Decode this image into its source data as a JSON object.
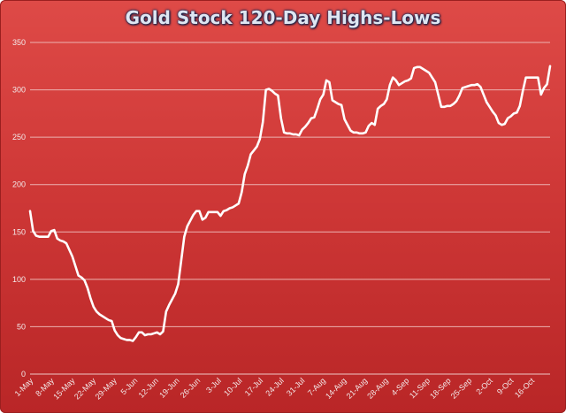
{
  "chart_data": {
    "type": "line",
    "title": "Gold Stock 120-Day Highs-Lows",
    "xlabel": "",
    "ylabel": "",
    "ylim": [
      0,
      350
    ],
    "yticks": [
      0,
      50,
      100,
      150,
      200,
      250,
      300,
      350
    ],
    "grid": true,
    "legend": "none",
    "colors": {
      "background_top": "#de4a47",
      "background_bottom": "#b92627",
      "line": "#ffffff",
      "grid": "#ecb2b1",
      "title": "#dfe6f2"
    },
    "x_tick_labels": [
      "1-May",
      "8-May",
      "15-May",
      "22-May",
      "29-May",
      "5-Jun",
      "12-Jun",
      "19-Jun",
      "26-Jun",
      "3-Jul",
      "10-Jul",
      "17-Jul",
      "24-Jul",
      "31-Jul",
      "7-Aug",
      "14-Aug",
      "21-Aug",
      "28-Aug",
      "4-Sep",
      "11-Sep",
      "18-Sep",
      "25-Sep",
      "2-Oct",
      "9-Oct",
      "16-Oct"
    ],
    "series": [
      {
        "values": [
          172,
          151,
          146,
          145,
          145,
          145,
          145,
          151,
          152,
          143,
          141,
          140,
          138,
          131,
          124,
          114,
          104,
          102,
          99,
          91,
          80,
          71,
          66,
          63,
          61,
          59,
          57,
          56,
          46,
          41,
          38,
          37,
          36,
          36,
          35,
          39,
          44,
          44,
          41,
          42,
          42,
          43,
          44,
          42,
          45,
          66,
          73,
          79,
          85,
          95,
          120,
          145,
          156,
          162,
          168,
          172,
          172,
          163,
          165,
          171,
          171,
          171,
          171,
          167,
          172,
          173,
          175,
          176,
          178,
          180,
          192,
          211,
          220,
          232,
          236,
          240,
          248,
          266,
          300,
          301,
          299,
          296,
          294,
          270,
          255,
          254,
          254,
          253,
          253,
          252,
          258,
          261,
          265,
          270,
          271,
          280,
          290,
          295,
          310,
          308,
          289,
          287,
          285,
          284,
          269,
          263,
          257,
          255,
          255,
          254,
          254,
          255,
          262,
          265,
          263,
          280,
          283,
          285,
          290,
          305,
          313,
          310,
          305,
          307,
          309,
          310,
          312,
          323,
          324,
          324,
          322,
          320,
          318,
          313,
          308,
          295,
          282,
          282,
          283,
          283,
          285,
          288,
          294,
          302,
          303,
          304,
          305,
          305,
          306,
          303,
          295,
          287,
          282,
          277,
          273,
          265,
          263,
          264,
          270,
          272,
          275,
          276,
          283,
          299,
          313,
          313,
          313,
          313,
          313,
          295,
          302,
          306,
          325
        ]
      }
    ]
  }
}
